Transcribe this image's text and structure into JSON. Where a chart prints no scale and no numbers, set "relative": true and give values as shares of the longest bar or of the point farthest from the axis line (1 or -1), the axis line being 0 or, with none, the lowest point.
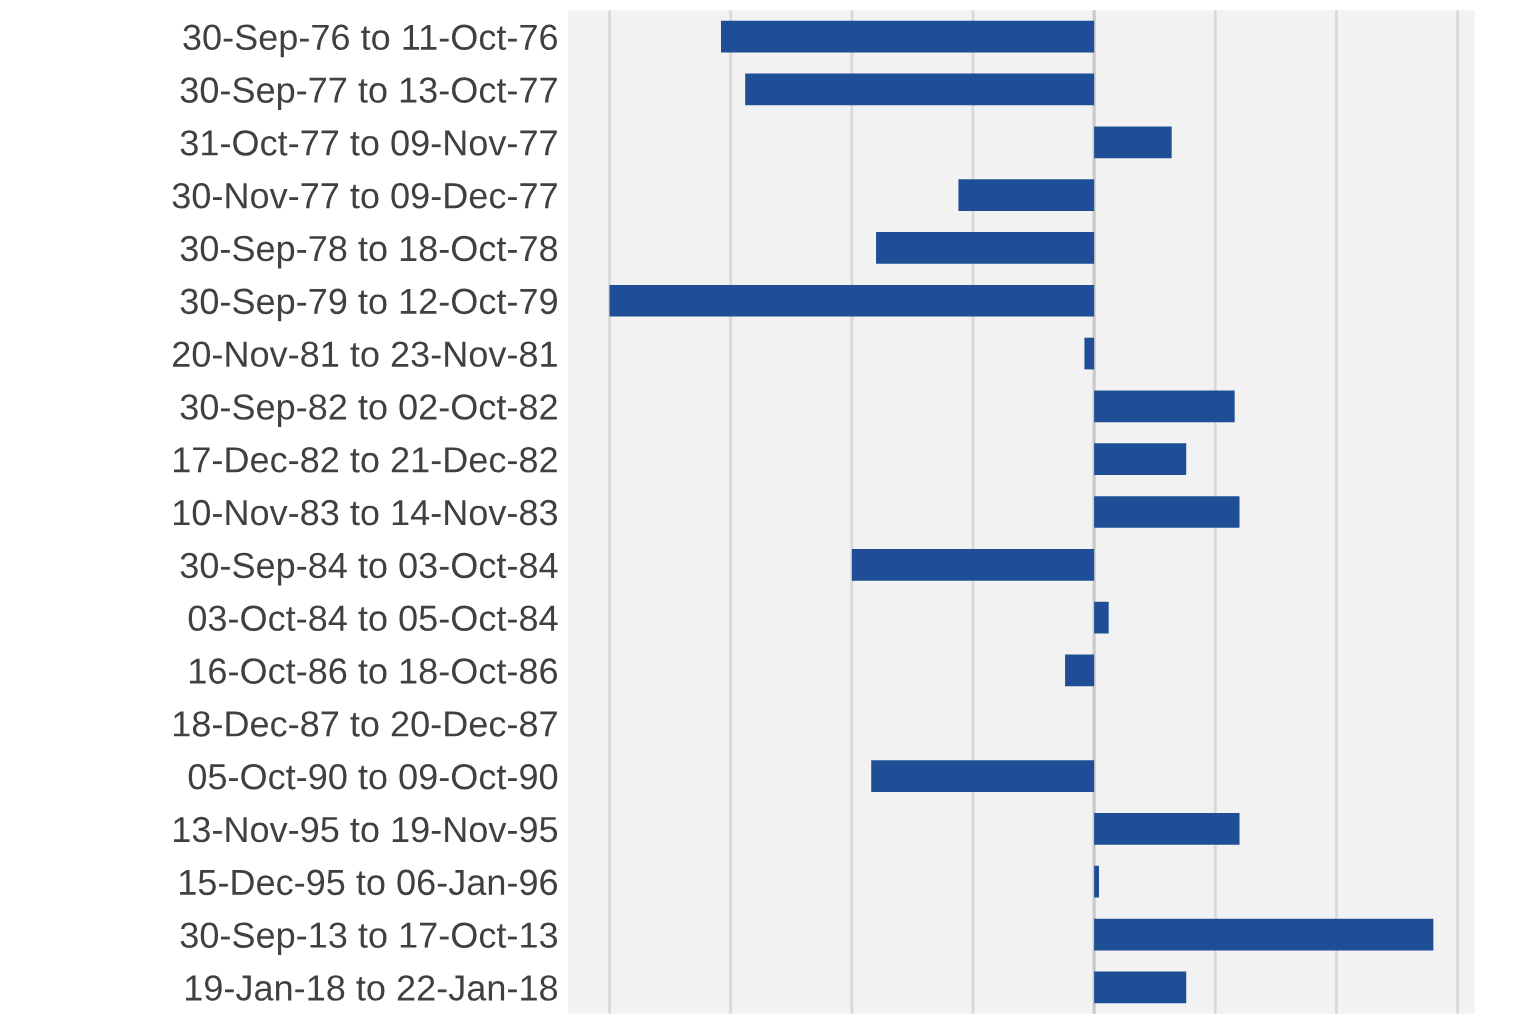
{
  "chart_data": {
    "type": "bar",
    "orientation": "horizontal",
    "relative": true,
    "grid": "x",
    "legend": false,
    "categories": [
      "30-Sep-76 to 11-Oct-76",
      "30-Sep-77 to 13-Oct-77",
      "31-Oct-77 to 09-Nov-77",
      "30-Nov-77 to 09-Dec-77",
      "30-Sep-78 to 18-Oct-78",
      "30-Sep-79 to 12-Oct-79",
      "20-Nov-81 to 23-Nov-81",
      "30-Sep-82 to 02-Oct-82",
      "17-Dec-82 to 21-Dec-82",
      "10-Nov-83 to 14-Nov-83",
      "30-Sep-84 to 03-Oct-84",
      "03-Oct-84 to 05-Oct-84",
      "16-Oct-86 to 18-Oct-86",
      "18-Dec-87 to 20-Dec-87",
      "05-Oct-90 to 09-Oct-90",
      "13-Nov-95 to 19-Nov-95",
      "15-Dec-95 to 06-Jan-96",
      "30-Sep-13 to 17-Oct-13",
      "19-Jan-18 to 22-Jan-18"
    ],
    "series": [
      {
        "color": "#1f4e96",
        "values": [
          -0.77,
          -0.72,
          0.16,
          -0.28,
          -0.45,
          -1,
          -0.02,
          0.29,
          0.19,
          0.3,
          -0.5,
          0.03,
          -0.06,
          0,
          -0.46,
          0.3,
          0.01,
          0.7,
          0.19
        ]
      }
    ]
  }
}
